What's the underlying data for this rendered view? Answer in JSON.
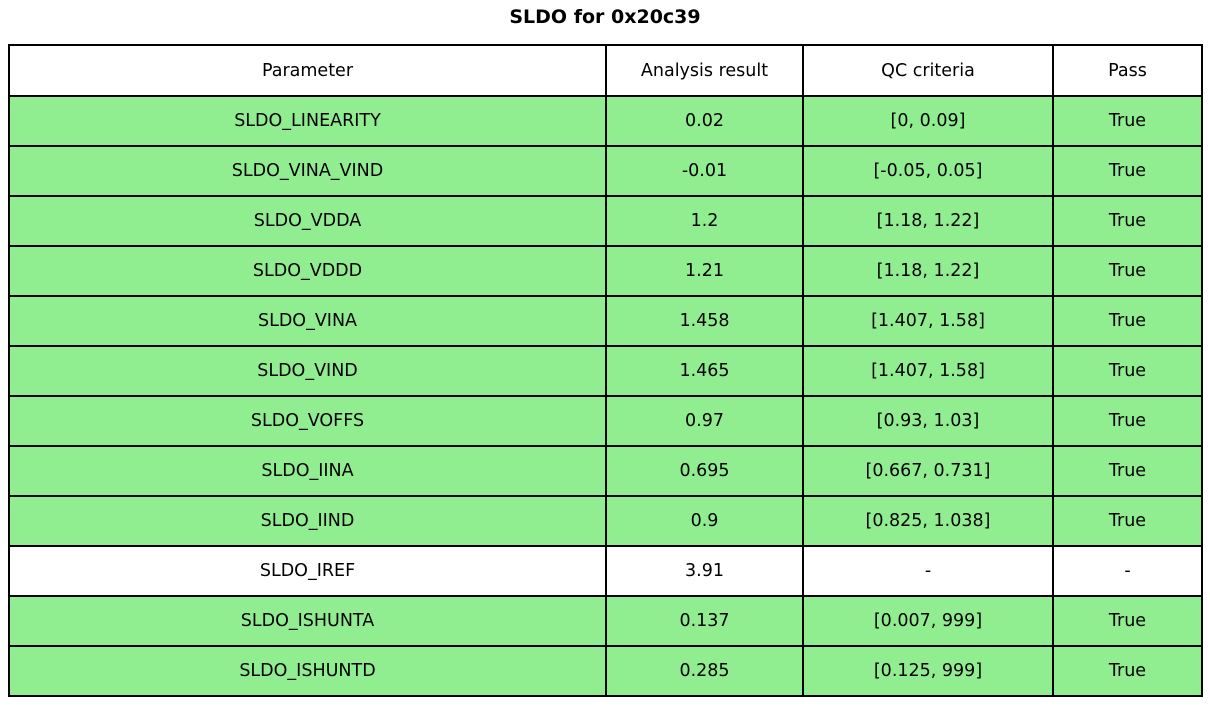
{
  "title": "SLDO for 0x20c39",
  "colors": {
    "pass_green": "#90ee90",
    "neutral_white": "#ffffff",
    "border": "#000000"
  },
  "chart_data": {
    "type": "table",
    "title": "SLDO for 0x20c39",
    "headers": [
      "Parameter",
      "Analysis result",
      "QC criteria",
      "Pass"
    ],
    "rows": [
      {
        "parameter": "SLDO_LINEARITY",
        "result": "0.02",
        "criteria": "[0, 0.09]",
        "pass": "True",
        "highlight": true
      },
      {
        "parameter": "SLDO_VINA_VIND",
        "result": "-0.01",
        "criteria": "[-0.05, 0.05]",
        "pass": "True",
        "highlight": true
      },
      {
        "parameter": "SLDO_VDDA",
        "result": "1.2",
        "criteria": "[1.18, 1.22]",
        "pass": "True",
        "highlight": true
      },
      {
        "parameter": "SLDO_VDDD",
        "result": "1.21",
        "criteria": "[1.18, 1.22]",
        "pass": "True",
        "highlight": true
      },
      {
        "parameter": "SLDO_VINA",
        "result": "1.458",
        "criteria": "[1.407, 1.58]",
        "pass": "True",
        "highlight": true
      },
      {
        "parameter": "SLDO_VIND",
        "result": "1.465",
        "criteria": "[1.407, 1.58]",
        "pass": "True",
        "highlight": true
      },
      {
        "parameter": "SLDO_VOFFS",
        "result": "0.97",
        "criteria": "[0.93, 1.03]",
        "pass": "True",
        "highlight": true
      },
      {
        "parameter": "SLDO_IINA",
        "result": "0.695",
        "criteria": "[0.667, 0.731]",
        "pass": "True",
        "highlight": true
      },
      {
        "parameter": "SLDO_IIND",
        "result": "0.9",
        "criteria": "[0.825, 1.038]",
        "pass": "True",
        "highlight": true
      },
      {
        "parameter": "SLDO_IREF",
        "result": "3.91",
        "criteria": "-",
        "pass": "-",
        "highlight": false
      },
      {
        "parameter": "SLDO_ISHUNTA",
        "result": "0.137",
        "criteria": "[0.007, 999]",
        "pass": "True",
        "highlight": true
      },
      {
        "parameter": "SLDO_ISHUNTD",
        "result": "0.285",
        "criteria": "[0.125, 999]",
        "pass": "True",
        "highlight": true
      }
    ]
  }
}
